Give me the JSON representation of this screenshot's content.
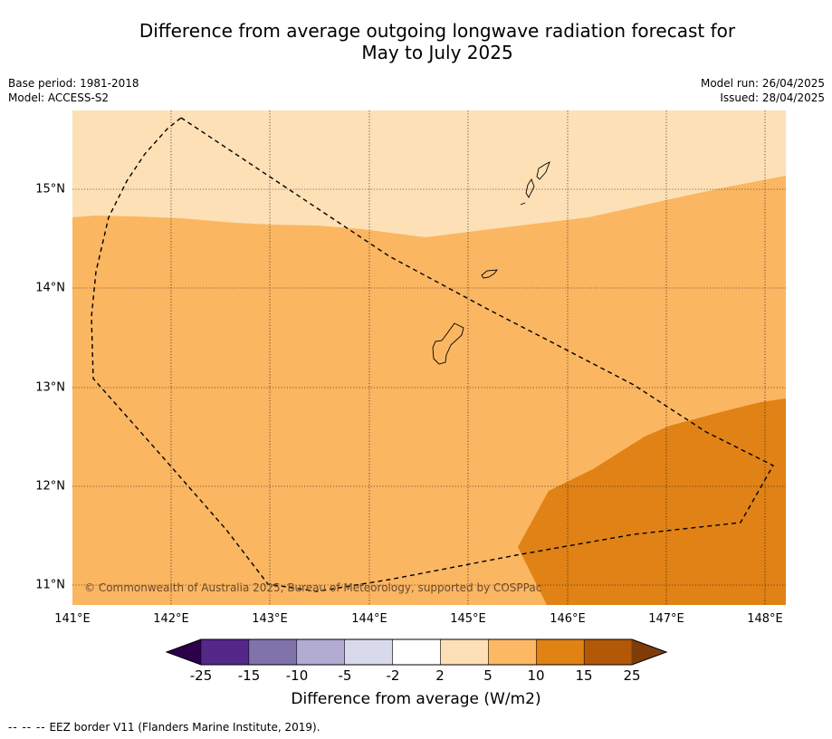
{
  "title": {
    "line1": "Difference from average outgoing longwave radiation forecast for",
    "line2": "May to July 2025"
  },
  "meta": {
    "base_period": "Base period: 1981-2018",
    "model": "Model: ACCESS-S2",
    "model_run": "Model run: 26/04/2025",
    "issued": "Issued: 28/04/2025"
  },
  "map": {
    "latitude_labels": [
      "15°N",
      "14°N",
      "13°N",
      "12°N",
      "11°N"
    ],
    "longitude_labels": [
      "141°E",
      "142°E",
      "143°E",
      "144°E",
      "145°E",
      "146°E",
      "147°E",
      "148°E"
    ],
    "copyright": "© Commonwealth of Australia 2025, Bureau of Meteorology, supported by COSPPac",
    "colors": {
      "band_2_5": "#fde0b6",
      "band_5_10": "#fbb662",
      "band_10_15": "#e08216"
    }
  },
  "colorbar": {
    "tick_labels": [
      "-25",
      "-15",
      "-10",
      "-5",
      "-2",
      "2",
      "5",
      "10",
      "15",
      "25"
    ],
    "colors": [
      "#2d004b",
      "#542788",
      "#8073ac",
      "#b2abd2",
      "#d8daeb",
      "#ffffff",
      "#fee0b6",
      "#fdb863",
      "#e08214",
      "#b35806",
      "#7f3b08"
    ],
    "title": "Difference from average (W/m2)"
  },
  "footnote": {
    "dashes": "--  --  --",
    "text": "EEZ border V11 (Flanders Marine Institute, 2019)."
  }
}
